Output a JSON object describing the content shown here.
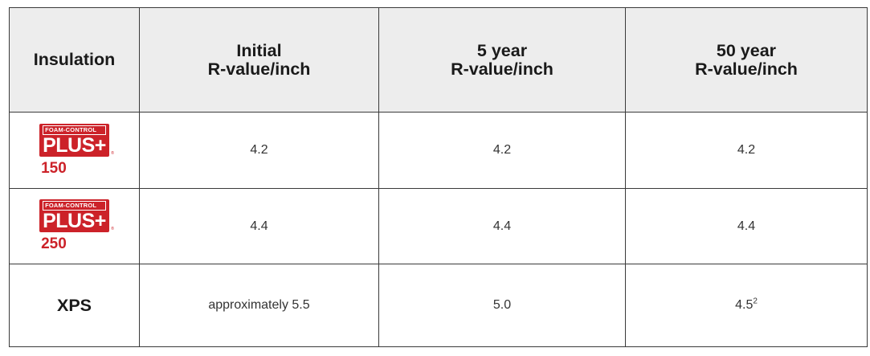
{
  "colors": {
    "header_bg": "#ededed",
    "brand_red": "#cc2229",
    "border": "#3a3a3a"
  },
  "headers": [
    {
      "line1": "Insulation",
      "line2": ""
    },
    {
      "line1": "Initial",
      "line2": "R-value/inch"
    },
    {
      "line1": "5 year",
      "line2": "R-value/inch"
    },
    {
      "line1": "50 year",
      "line2": "R-value/inch"
    }
  ],
  "rows": [
    {
      "product": {
        "logo_top": "FOAM-CONTROL",
        "logo_main": "PLUS+",
        "number": "150"
      },
      "initial": "4.2",
      "five_year": "4.2",
      "fifty_year": "4.2",
      "fifty_year_note": ""
    },
    {
      "product": {
        "logo_top": "FOAM-CONTROL",
        "logo_main": "PLUS+",
        "number": "250"
      },
      "initial": "4.4",
      "five_year": "4.4",
      "fifty_year": "4.4",
      "fifty_year_note": ""
    },
    {
      "product": {
        "name": "XPS"
      },
      "initial": "approximately 5.5",
      "five_year": "5.0",
      "fifty_year": "4.5",
      "fifty_year_note": "2"
    }
  ]
}
